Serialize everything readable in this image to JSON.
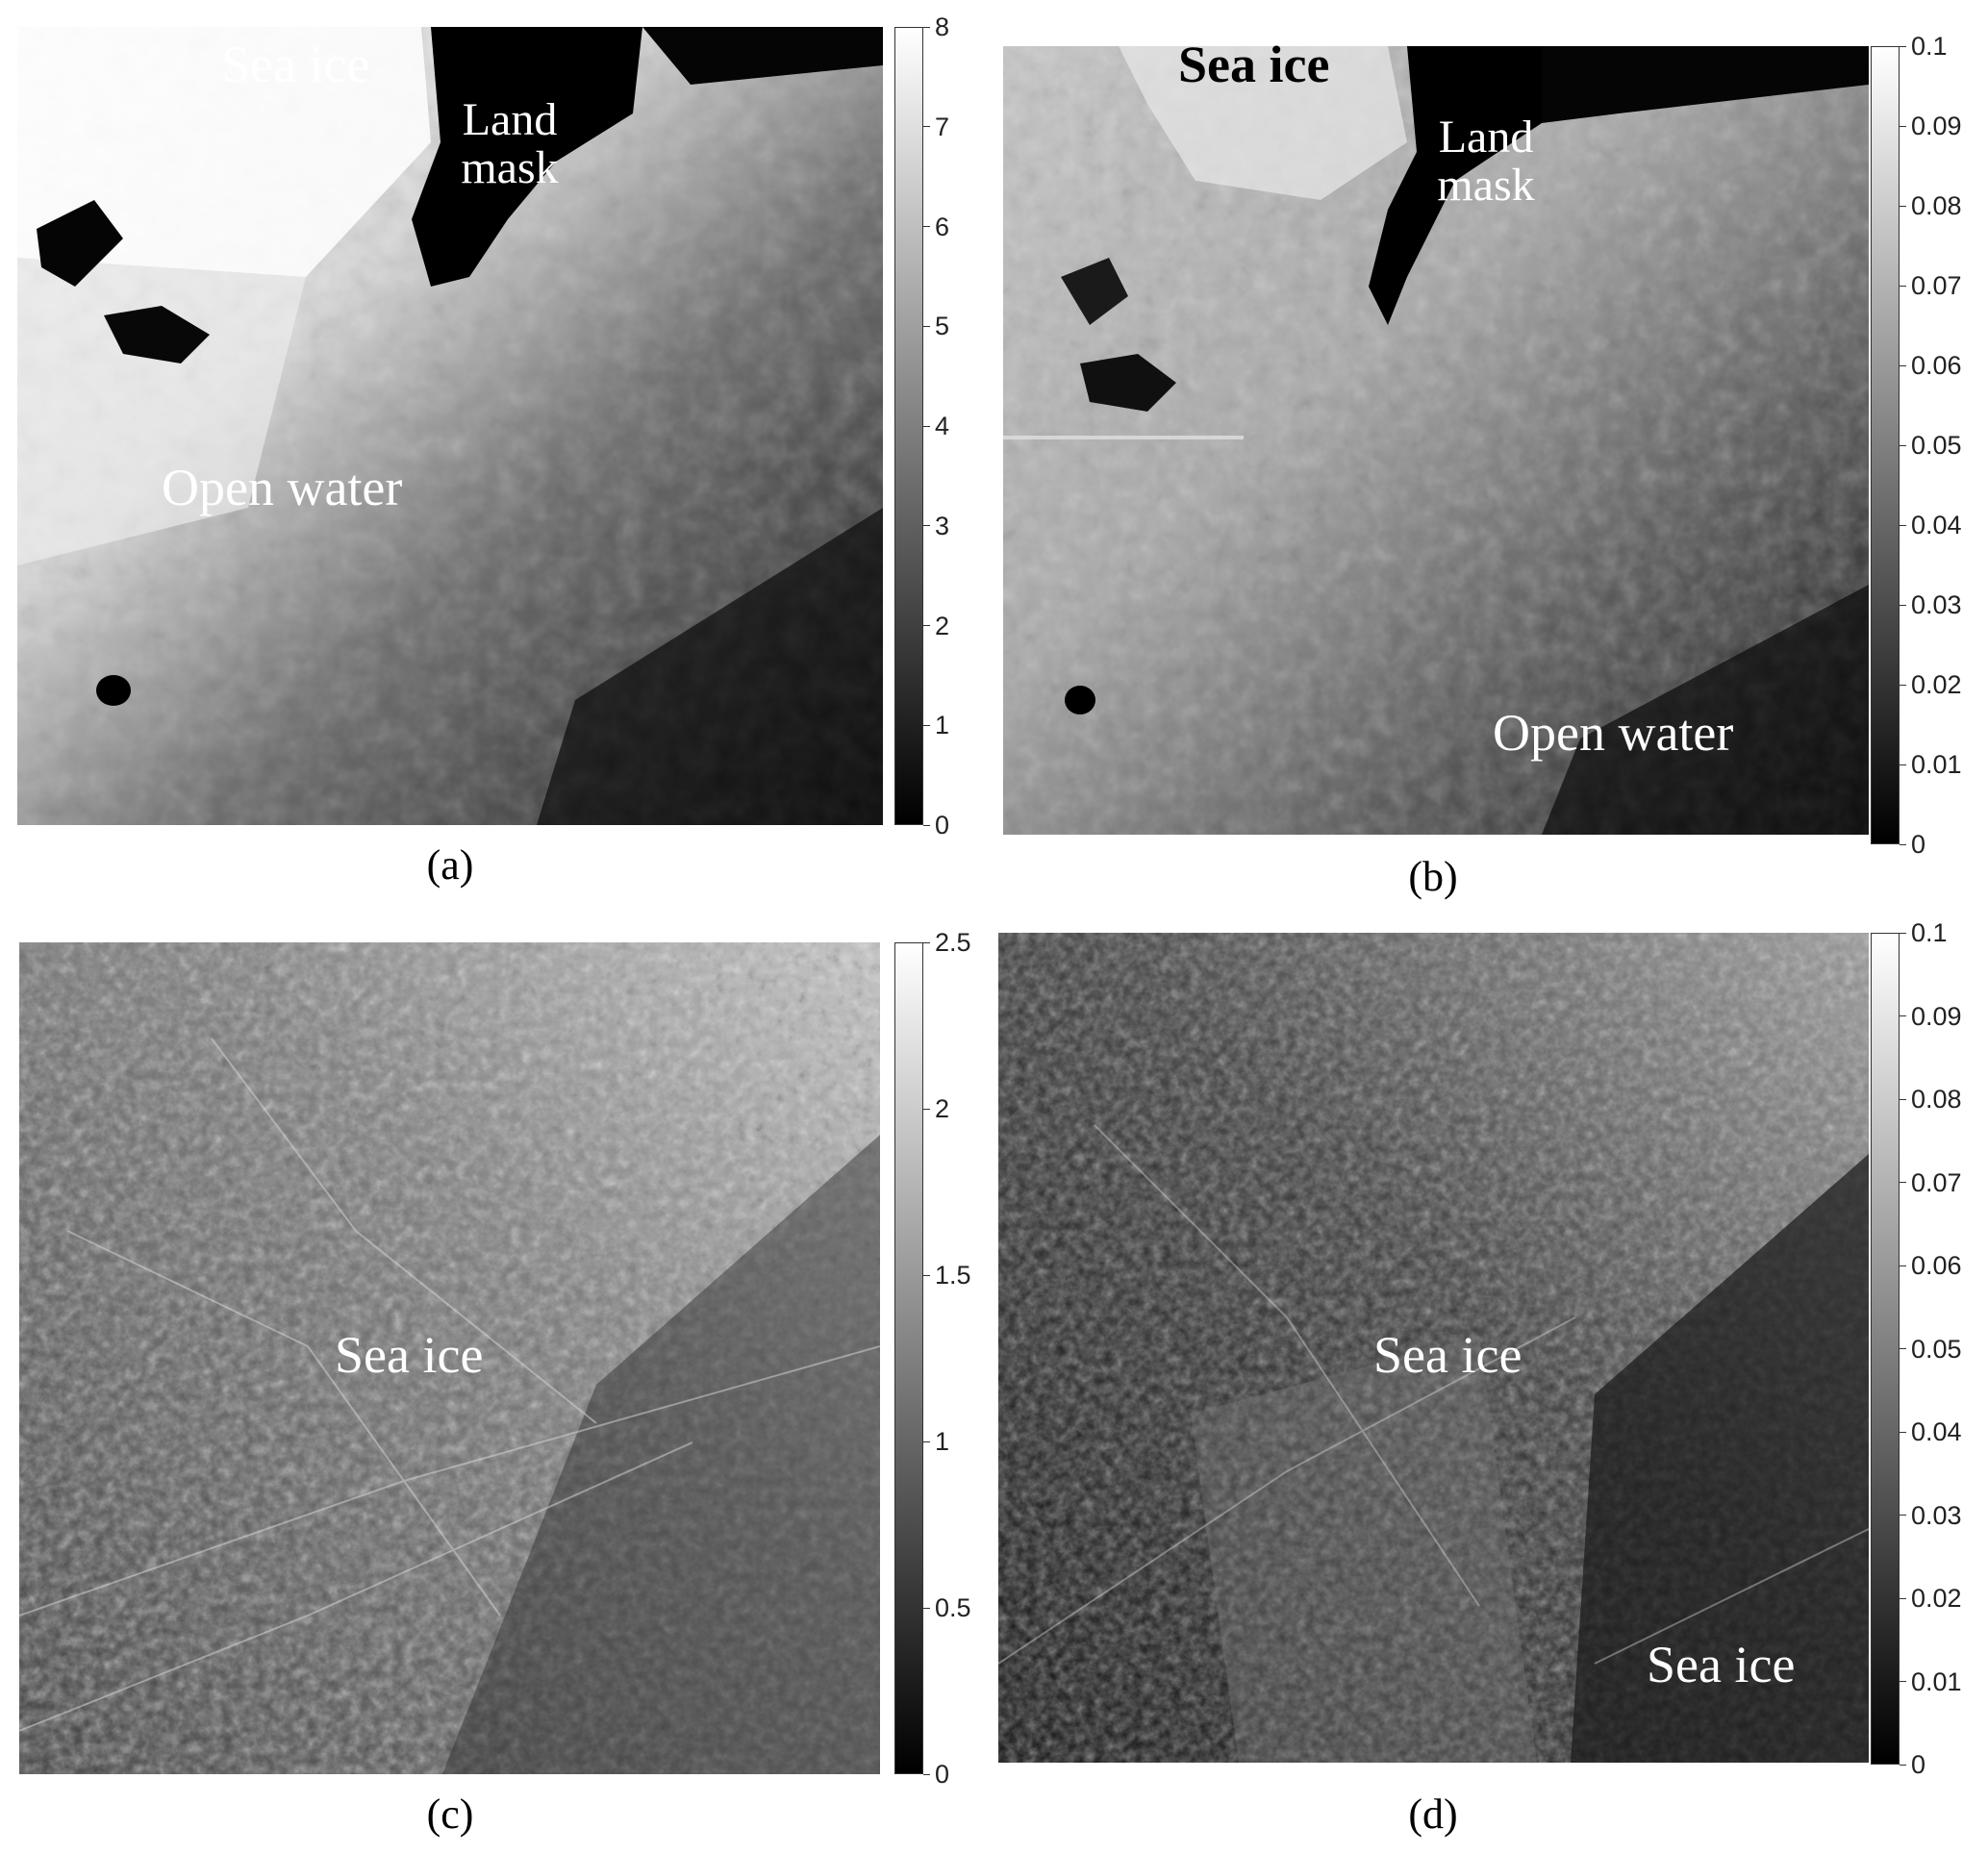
{
  "panels": [
    {
      "caption": "(a)",
      "labels": {
        "sea_ice": "Sea ice",
        "land_mask": "Land mask",
        "open_water": "Open water"
      },
      "colorbar": {
        "min": 0,
        "max": 8,
        "ticks": [
          "0",
          "1",
          "2",
          "3",
          "4",
          "5",
          "6",
          "7",
          "8"
        ]
      }
    },
    {
      "caption": "(b)",
      "labels": {
        "sea_ice": "Sea ice",
        "land_mask": "Land mask",
        "open_water": "Open water"
      },
      "colorbar": {
        "min": 0,
        "max": 0.1,
        "ticks": [
          "0",
          "0.01",
          "0.02",
          "0.03",
          "0.04",
          "0.05",
          "0.06",
          "0.07",
          "0.08",
          "0.09",
          "0.1"
        ]
      }
    },
    {
      "caption": "(c)",
      "labels": {
        "sea_ice": "Sea ice"
      },
      "colorbar": {
        "min": 0,
        "max": 2.5,
        "ticks": [
          "0",
          "0.5",
          "1",
          "1.5",
          "2",
          "2.5"
        ]
      }
    },
    {
      "caption": "(d)",
      "labels": {
        "sea_ice_1": "Sea ice",
        "sea_ice_2": "Sea ice"
      },
      "colorbar": {
        "min": 0,
        "max": 0.1,
        "ticks": [
          "0",
          "0.01",
          "0.02",
          "0.03",
          "0.04",
          "0.05",
          "0.06",
          "0.07",
          "0.08",
          "0.09",
          "0.1"
        ]
      }
    }
  ]
}
